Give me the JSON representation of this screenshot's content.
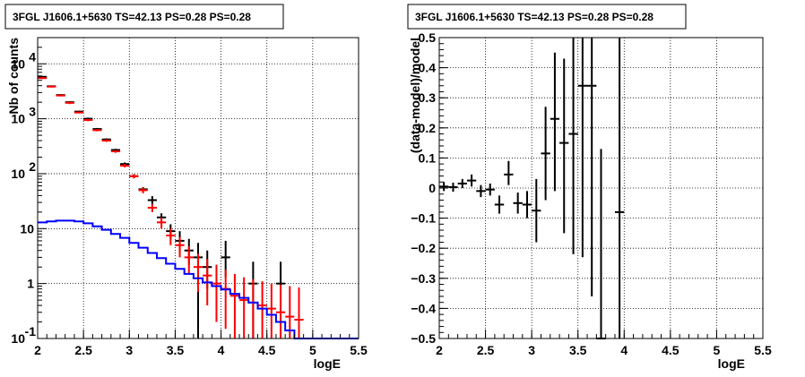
{
  "chart_data": [
    {
      "type": "histogram",
      "title": "3FGL J1606.1+5630 TS=42.13 PS=0.28 PS=0.28",
      "xlabel": "logE",
      "ylabel": "Nb of counts",
      "xlim": [
        2,
        5.5
      ],
      "ylim": [
        0.1,
        30000
      ],
      "yscale": "log",
      "grid": true,
      "xticks": [
        "2",
        "2.5",
        "3",
        "3.5",
        "4",
        "4.5",
        "5",
        "5.5"
      ],
      "yticks": [
        {
          "value": 0.1,
          "label": "10",
          "exp": "-1"
        },
        {
          "value": 1,
          "label": "1",
          "exp": ""
        },
        {
          "value": 10,
          "label": "10",
          "exp": ""
        },
        {
          "value": 100,
          "label": "10",
          "exp": "2"
        },
        {
          "value": 1000,
          "label": "10",
          "exp": "3"
        },
        {
          "value": 10000,
          "label": "10",
          "exp": "4"
        }
      ],
      "bin_width": 0.1,
      "series": [
        {
          "color": "#000000",
          "style": "errorbar",
          "x": [
            2.05,
            2.15,
            2.25,
            2.35,
            2.45,
            2.55,
            2.65,
            2.75,
            2.85,
            2.95,
            3.05,
            3.15,
            3.25,
            3.35,
            3.45,
            3.55,
            3.65,
            3.75,
            3.85,
            4.05,
            4.35,
            4.65
          ],
          "y": [
            5800,
            3900,
            2700,
            2000,
            1350,
            1000,
            650,
            420,
            270,
            150,
            90,
            52,
            33,
            16,
            9,
            6,
            4,
            3,
            2,
            3,
            1,
            1
          ],
          "ylo": [
            5600,
            3750,
            2600,
            1900,
            1300,
            950,
            620,
            400,
            255,
            140,
            85,
            48,
            28,
            13,
            6.5,
            3.6,
            2.2,
            0.1,
            0.8,
            1.3,
            0.1,
            0.1
          ],
          "yhi": [
            6000,
            4050,
            2800,
            2100,
            1400,
            1050,
            680,
            440,
            285,
            160,
            95,
            57,
            39,
            19,
            12,
            9,
            6.5,
            5.5,
            4,
            6,
            2.5,
            2.5
          ]
        },
        {
          "color": "#ff0000",
          "style": "errorbar",
          "x": [
            2.05,
            2.15,
            2.25,
            2.35,
            2.45,
            2.55,
            2.65,
            2.75,
            2.85,
            2.95,
            3.05,
            3.15,
            3.25,
            3.35,
            3.45,
            3.55,
            3.65,
            3.75,
            3.85,
            3.95,
            4.05,
            4.15,
            4.25,
            4.35,
            4.45,
            4.55,
            4.65,
            4.75,
            4.85
          ],
          "y": [
            5500,
            3850,
            2650,
            1950,
            1300,
            950,
            620,
            400,
            255,
            140,
            90,
            50,
            24,
            13,
            7.5,
            5,
            3,
            2,
            1.4,
            1,
            0.8,
            0.6,
            0.5,
            0.45,
            0.4,
            0.35,
            0.3,
            0.25,
            0.22
          ],
          "ylo": [
            5300,
            3700,
            2550,
            1850,
            1250,
            900,
            590,
            380,
            240,
            130,
            82,
            44,
            20,
            10,
            5,
            3,
            1.5,
            0.7,
            0.4,
            0.2,
            0.15,
            0.1,
            0.1,
            0.1,
            0.1,
            0.1,
            0.1,
            0.1,
            0.1
          ],
          "yhi": [
            5700,
            4000,
            2750,
            2050,
            1350,
            1000,
            650,
            420,
            270,
            150,
            98,
            56,
            28,
            16,
            10,
            7,
            4.8,
            3.5,
            2.8,
            2.2,
            1.8,
            1.5,
            1.3,
            1.2,
            1.1,
            1.0,
            0.95,
            0.9,
            0.85
          ]
        },
        {
          "color": "#0000ff",
          "style": "step",
          "x": [
            2.05,
            2.15,
            2.25,
            2.35,
            2.45,
            2.55,
            2.65,
            2.75,
            2.85,
            2.95,
            3.05,
            3.15,
            3.25,
            3.35,
            3.45,
            3.55,
            3.65,
            3.75,
            3.85,
            3.95,
            4.05,
            4.15,
            4.25,
            4.35,
            4.45,
            4.55,
            4.65,
            4.75,
            4.85,
            4.95,
            5.05,
            5.15,
            5.25,
            5.35,
            5.45
          ],
          "y": [
            13,
            13.5,
            14,
            14,
            13.5,
            12.5,
            11,
            9.5,
            8,
            6.8,
            5.5,
            4.5,
            3.6,
            2.9,
            2.3,
            1.85,
            1.5,
            1.25,
            1.05,
            0.9,
            0.78,
            0.65,
            0.55,
            0.45,
            0.35,
            0.27,
            0.2,
            0.14,
            0.1,
            0.1,
            0.1,
            0.1,
            0.1,
            0.1,
            0.1
          ]
        }
      ]
    },
    {
      "type": "errorbar",
      "title": "3FGL J1606.1+5630 TS=42.13 PS=0.28 PS=0.28",
      "xlabel": "logE",
      "ylabel": "(data-model)/model",
      "xlim": [
        2,
        5.5
      ],
      "ylim": [
        -0.5,
        0.5
      ],
      "grid": true,
      "xticks": [
        "2",
        "2.5",
        "3",
        "3.5",
        "4",
        "4.5",
        "5",
        "5.5"
      ],
      "yticks": [
        "−0.5",
        "−0.4",
        "−0.3",
        "−0.2",
        "−0.1",
        "0",
        "0.1",
        "0.2",
        "0.3",
        "0.4",
        "0.5"
      ],
      "yticks_values": [
        -0.5,
        -0.4,
        -0.3,
        -0.2,
        -0.1,
        0,
        0.1,
        0.2,
        0.3,
        0.4,
        0.5
      ],
      "bin_width": 0.1,
      "series": [
        {
          "color": "#000000",
          "x": [
            2.05,
            2.15,
            2.25,
            2.35,
            2.45,
            2.55,
            2.65,
            2.75,
            2.85,
            2.95,
            3.05,
            3.15,
            3.25,
            3.35,
            3.45,
            3.55,
            3.65,
            3.75,
            3.95
          ],
          "y": [
            0.005,
            0.003,
            0.015,
            0.025,
            -0.01,
            -0.005,
            -0.055,
            0.045,
            -0.05,
            -0.055,
            -0.075,
            0.115,
            0.23,
            0.15,
            0.18,
            0.34,
            0.34,
            -0.5,
            -0.08
          ],
          "ylo": [
            -0.01,
            -0.012,
            0,
            0.005,
            -0.03,
            -0.025,
            -0.085,
            0.01,
            -0.085,
            -0.1,
            -0.18,
            -0.04,
            -0.01,
            -0.15,
            -0.22,
            -0.23,
            -0.36,
            -0.5,
            -0.5
          ],
          "yhi": [
            0.02,
            0.018,
            0.03,
            0.045,
            0.01,
            0.015,
            -0.025,
            0.09,
            -0.015,
            -0.01,
            0.03,
            0.27,
            0.45,
            0.43,
            0.5,
            0.5,
            0.5,
            0.13,
            0.5
          ]
        }
      ]
    }
  ]
}
